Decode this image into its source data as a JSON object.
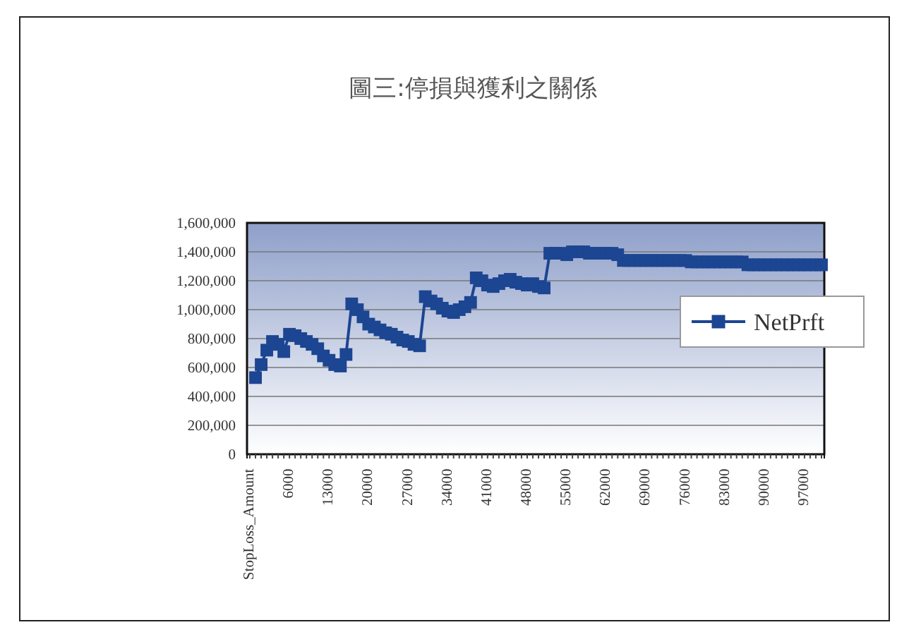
{
  "chart_data": {
    "type": "line",
    "title": "圖三:停損與獲利之關係",
    "categories": [
      "StopLoss_Amount",
      null,
      null,
      null,
      null,
      null,
      null,
      "6000",
      null,
      null,
      null,
      null,
      null,
      null,
      "13000",
      null,
      null,
      null,
      null,
      null,
      null,
      "20000",
      null,
      null,
      null,
      null,
      null,
      null,
      "27000",
      null,
      null,
      null,
      null,
      null,
      null,
      "34000",
      null,
      null,
      null,
      null,
      null,
      null,
      "41000",
      null,
      null,
      null,
      null,
      null,
      null,
      "48000",
      null,
      null,
      null,
      null,
      null,
      null,
      "55000",
      null,
      null,
      null,
      null,
      null,
      null,
      "62000",
      null,
      null,
      null,
      null,
      null,
      null,
      "69000",
      null,
      null,
      null,
      null,
      null,
      null,
      "76000",
      null,
      null,
      null,
      null,
      null,
      null,
      "83000",
      null,
      null,
      null,
      null,
      null,
      null,
      "90000",
      null,
      null,
      null,
      null,
      null,
      null,
      "97000",
      null,
      null,
      null
    ],
    "series": [
      {
        "name": "NetPrft",
        "color": "#1c4592",
        "values": [
          null,
          530000,
          620000,
          720000,
          780000,
          760000,
          710000,
          830000,
          820000,
          800000,
          780000,
          760000,
          730000,
          680000,
          650000,
          620000,
          610000,
          690000,
          1040000,
          1000000,
          950000,
          900000,
          880000,
          860000,
          840000,
          830000,
          810000,
          790000,
          780000,
          760000,
          750000,
          1090000,
          1060000,
          1040000,
          1010000,
          990000,
          980000,
          1000000,
          1020000,
          1050000,
          1220000,
          1200000,
          1170000,
          1160000,
          1180000,
          1200000,
          1210000,
          1190000,
          1180000,
          1170000,
          1180000,
          1160000,
          1150000,
          1390000,
          1390000,
          1390000,
          1380000,
          1400000,
          1400000,
          1400000,
          1390000,
          1390000,
          1390000,
          1390000,
          1390000,
          1380000,
          1340000,
          1340000,
          1340000,
          1340000,
          1340000,
          1340000,
          1340000,
          1340000,
          1340000,
          1340000,
          1340000,
          1340000,
          1330000,
          1330000,
          1330000,
          1330000,
          1330000,
          1330000,
          1330000,
          1330000,
          1330000,
          1330000,
          1310000,
          1310000,
          1310000,
          1310000,
          1310000,
          1310000,
          1310000,
          1310000,
          1310000,
          1310000,
          1310000,
          1310000,
          1310000,
          1310000
        ]
      }
    ],
    "ylim": [
      0,
      1600000
    ],
    "yticks": [
      0,
      {
        "value": 200000,
        "label": "200,000"
      },
      {
        "value": 400000,
        "label": "400,000"
      },
      {
        "value": 600000,
        "label": "600,000"
      },
      {
        "value": 800000,
        "label": "800,000"
      },
      {
        "value": 1000000,
        "label": "1,000,000"
      },
      {
        "value": 1200000,
        "label": "1,200,000"
      },
      {
        "value": 1400000,
        "label": "1,400,000"
      },
      {
        "value": 1600000,
        "label": "1,600,000"
      }
    ],
    "grid": "y",
    "legend": "right",
    "marker": "square",
    "line_style": "solid"
  }
}
